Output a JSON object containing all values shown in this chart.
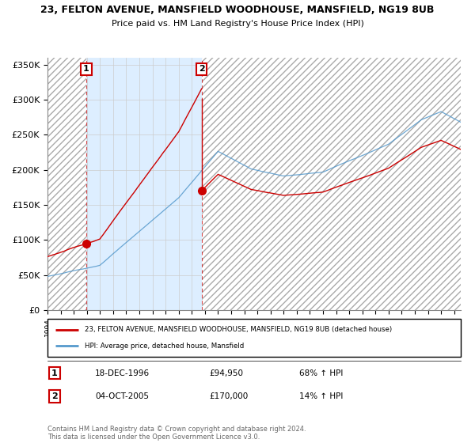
{
  "title": "23, FELTON AVENUE, MANSFIELD WOODHOUSE, MANSFIELD, NG19 8UB",
  "subtitle": "Price paid vs. HM Land Registry's House Price Index (HPI)",
  "ylim": [
    0,
    360000
  ],
  "yticks": [
    0,
    50000,
    100000,
    150000,
    200000,
    250000,
    300000,
    350000
  ],
  "ytick_labels": [
    "£0",
    "£50K",
    "£100K",
    "£150K",
    "£200K",
    "£250K",
    "£300K",
    "£350K"
  ],
  "legend_line1": "23, FELTON AVENUE, MANSFIELD WOODHOUSE, MANSFIELD, NG19 8UB (detached house)",
  "legend_line2": "HPI: Average price, detached house, Mansfield",
  "transaction1_date": "18-DEC-1996",
  "transaction1_price": "£94,950",
  "transaction1_hpi": "68% ↑ HPI",
  "transaction2_date": "04-OCT-2005",
  "transaction2_price": "£170,000",
  "transaction2_hpi": "14% ↑ HPI",
  "copyright": "Contains HM Land Registry data © Crown copyright and database right 2024.\nThis data is licensed under the Open Government Licence v3.0.",
  "property_color": "#cc0000",
  "hpi_color": "#5599cc",
  "shade_color": "#ddeeff",
  "hatch_color": "#cccccc",
  "transaction1_x_year": 1996.96,
  "transaction2_x_year": 2005.75,
  "transaction1_price_val": 94950,
  "transaction2_price_val": 170000,
  "xlim_start": 1994.0,
  "xlim_end": 2025.5
}
